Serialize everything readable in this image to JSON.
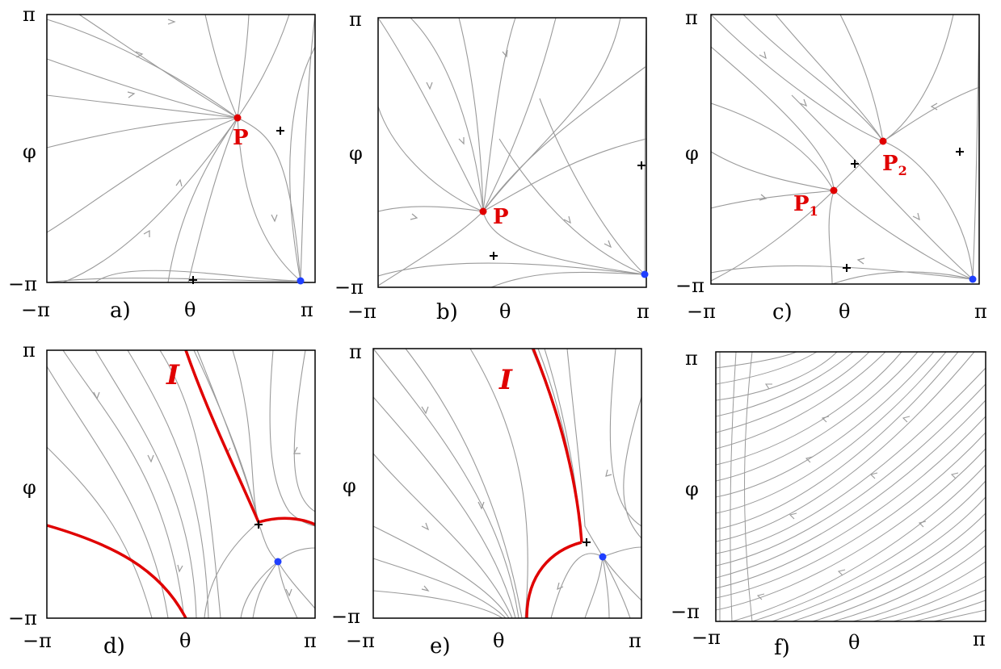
{
  "axis": {
    "pi_label": "π",
    "minus_pi_label": "−π",
    "x_symbol": "θ",
    "y_symbol": "φ"
  },
  "panels": [
    {
      "id": "a",
      "tag": "a)",
      "points": [
        {
          "label": "P",
          "sub": ""
        }
      ],
      "separatrix_label": ""
    },
    {
      "id": "b",
      "tag": "b)",
      "points": [
        {
          "label": "P",
          "sub": ""
        }
      ],
      "separatrix_label": ""
    },
    {
      "id": "c",
      "tag": "c)",
      "points": [
        {
          "label": "P",
          "sub": "1"
        },
        {
          "label": "P",
          "sub": "2"
        }
      ],
      "separatrix_label": ""
    },
    {
      "id": "d",
      "tag": "d)",
      "points": [],
      "separatrix_label": "I"
    },
    {
      "id": "e",
      "tag": "e)",
      "points": [],
      "separatrix_label": "I"
    },
    {
      "id": "f",
      "tag": "f)",
      "points": [],
      "separatrix_label": ""
    }
  ],
  "colors": {
    "flow": "#9a9a9a",
    "stable_point": "#e00000",
    "attractor": "#1f3fff",
    "saddle": "#000000",
    "separatrix": "#e00000",
    "frame": "#000000"
  }
}
